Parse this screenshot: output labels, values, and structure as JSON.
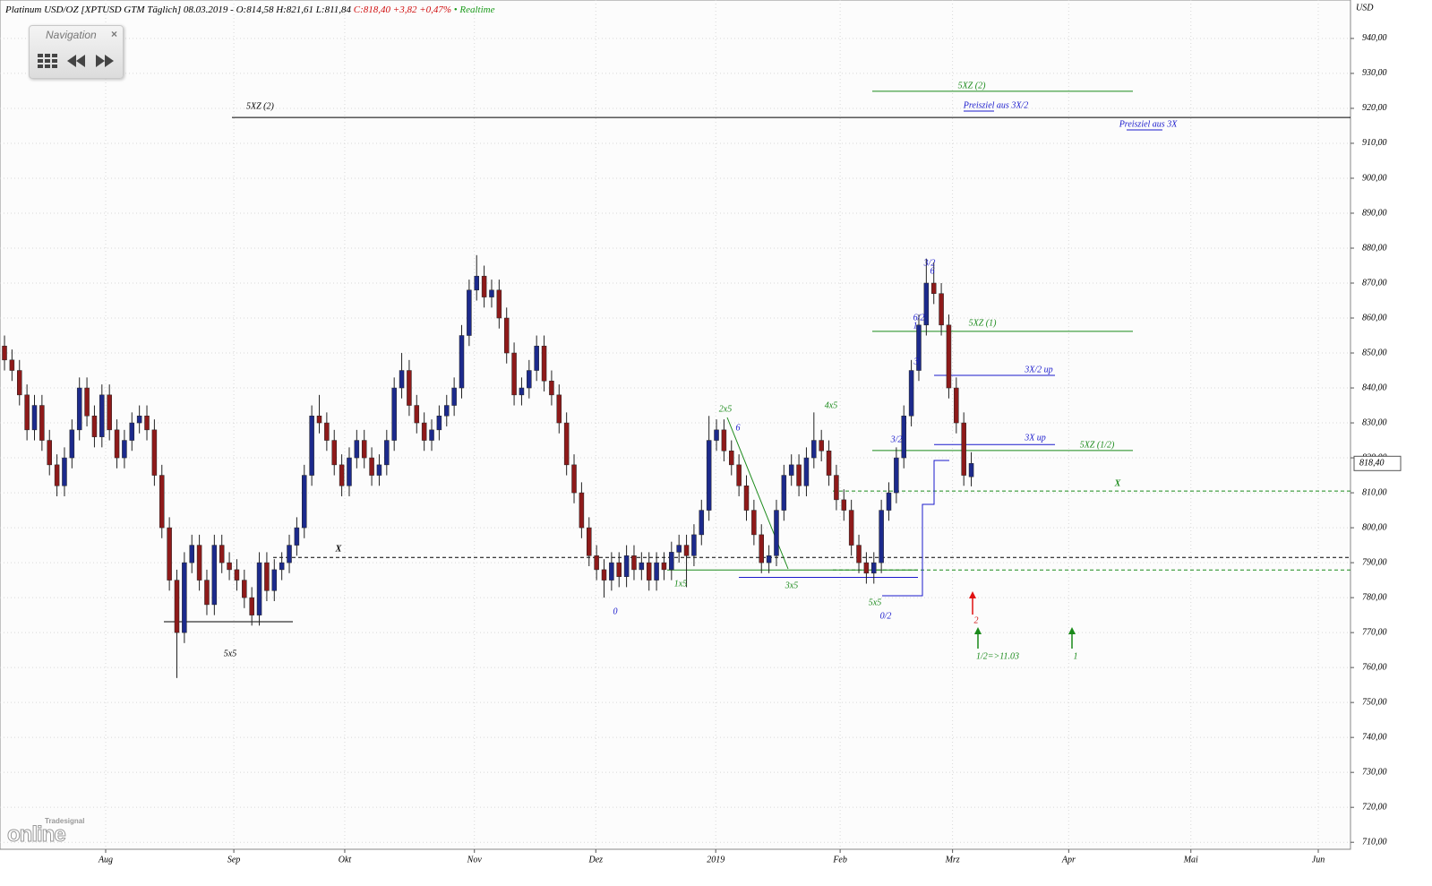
{
  "header": {
    "instrument": "Platinum USD/OZ [XPTUSD GTM Täglich] 08.03.2019 - O:814,58 H:821,61 L:811,84",
    "change": "C:818,40 +3,82 +0,47%",
    "status": "• Realtime"
  },
  "navigation": {
    "title": "Navigation",
    "close": "×"
  },
  "logo": {
    "brand": "Tradesignal",
    "name": "online"
  },
  "chart_data": {
    "type": "candlestick",
    "y_axis_label": "USD",
    "x": [
      0,
      1,
      2,
      3,
      4,
      5,
      6,
      7,
      8,
      9,
      10,
      11,
      12,
      13,
      14,
      15,
      16,
      17,
      18,
      19,
      20,
      21,
      22,
      23,
      24,
      25,
      26,
      27,
      28,
      29,
      30,
      31,
      32,
      33,
      34,
      35,
      36,
      37,
      38,
      39,
      40,
      41,
      42,
      43,
      44,
      45,
      46,
      47,
      48,
      49,
      50,
      51,
      52,
      53,
      54,
      55,
      56,
      57,
      58,
      59,
      60,
      61,
      62,
      63,
      64,
      65,
      66,
      67,
      68,
      69,
      70,
      71,
      72,
      73,
      74,
      75,
      76,
      77,
      78,
      79,
      80,
      81,
      82,
      83,
      84,
      85,
      86,
      87,
      88,
      89,
      90,
      91,
      92,
      93,
      94,
      95,
      96,
      97,
      98,
      99,
      100,
      101,
      102,
      103,
      104,
      105,
      106,
      107,
      108,
      109,
      110,
      111,
      112,
      113,
      114,
      115,
      116,
      117,
      118,
      119,
      120,
      121,
      122,
      123,
      124,
      125,
      126,
      127,
      128,
      129
    ],
    "open": [
      852,
      848,
      845,
      838,
      828,
      835,
      825,
      818,
      812,
      820,
      828,
      840,
      832,
      826,
      838,
      828,
      820,
      825,
      830,
      832,
      828,
      815,
      800,
      785,
      770,
      790,
      795,
      785,
      778,
      795,
      790,
      788,
      785,
      780,
      775,
      790,
      782,
      788,
      790,
      795,
      800,
      815,
      832,
      830,
      825,
      818,
      812,
      820,
      825,
      820,
      815,
      818,
      825,
      840,
      845,
      835,
      830,
      825,
      828,
      832,
      835,
      840,
      855,
      868,
      872,
      866,
      868,
      860,
      850,
      838,
      840,
      845,
      852,
      842,
      838,
      830,
      818,
      810,
      800,
      792,
      788,
      785,
      790,
      786,
      792,
      788,
      790,
      785,
      790,
      788,
      793,
      795,
      792,
      798,
      805,
      825,
      828,
      822,
      818,
      812,
      805,
      798,
      790,
      792,
      805,
      815,
      818,
      812,
      820,
      825,
      822,
      815,
      808,
      805,
      795,
      790,
      787,
      790,
      805,
      810,
      820,
      832,
      845,
      858,
      870,
      867,
      858,
      840,
      830,
      814.58
    ],
    "high": [
      855,
      851,
      848,
      841,
      838,
      838,
      828,
      821,
      823,
      831,
      843,
      843,
      835,
      841,
      841,
      831,
      828,
      833,
      835,
      835,
      831,
      818,
      803,
      788,
      793,
      798,
      798,
      788,
      798,
      798,
      793,
      791,
      788,
      783,
      793,
      793,
      791,
      793,
      798,
      803,
      818,
      835,
      838,
      833,
      828,
      821,
      823,
      828,
      828,
      823,
      821,
      828,
      843,
      850,
      848,
      838,
      833,
      831,
      835,
      838,
      843,
      858,
      871,
      878,
      875,
      871,
      871,
      863,
      853,
      843,
      848,
      855,
      855,
      845,
      841,
      833,
      821,
      813,
      803,
      795,
      791,
      793,
      793,
      795,
      795,
      793,
      793,
      793,
      793,
      796,
      798,
      798,
      801,
      808,
      832,
      831,
      831,
      825,
      821,
      815,
      808,
      801,
      795,
      808,
      818,
      821,
      821,
      823,
      833,
      828,
      825,
      818,
      811,
      808,
      798,
      793,
      793,
      808,
      813,
      823,
      835,
      848,
      861,
      877,
      876,
      870,
      861,
      843,
      833,
      821.61
    ],
    "low": [
      845,
      842,
      835,
      825,
      825,
      822,
      815,
      809,
      809,
      817,
      825,
      829,
      823,
      823,
      825,
      817,
      817,
      822,
      827,
      825,
      812,
      797,
      782,
      757,
      767,
      787,
      782,
      775,
      775,
      787,
      785,
      782,
      777,
      772,
      772,
      779,
      779,
      785,
      787,
      792,
      797,
      812,
      827,
      822,
      815,
      809,
      809,
      817,
      817,
      812,
      812,
      815,
      822,
      837,
      832,
      827,
      822,
      822,
      825,
      829,
      832,
      837,
      852,
      865,
      863,
      863,
      857,
      847,
      835,
      835,
      837,
      842,
      839,
      835,
      827,
      815,
      807,
      797,
      789,
      785,
      780,
      782,
      783,
      783,
      785,
      785,
      782,
      782,
      785,
      785,
      790,
      783,
      789,
      795,
      802,
      822,
      819,
      815,
      809,
      802,
      795,
      787,
      787,
      789,
      802,
      812,
      809,
      809,
      817,
      819,
      812,
      805,
      802,
      792,
      787,
      784,
      784,
      787,
      802,
      807,
      817,
      829,
      842,
      855,
      864,
      855,
      837,
      827,
      812,
      811.84
    ],
    "close": [
      848,
      845,
      838,
      828,
      835,
      825,
      818,
      812,
      820,
      828,
      840,
      832,
      826,
      838,
      828,
      820,
      825,
      830,
      832,
      828,
      815,
      800,
      785,
      770,
      790,
      795,
      785,
      778,
      795,
      790,
      788,
      785,
      780,
      775,
      790,
      782,
      788,
      790,
      795,
      800,
      815,
      832,
      830,
      825,
      818,
      812,
      820,
      825,
      820,
      815,
      818,
      825,
      840,
      845,
      835,
      830,
      825,
      828,
      832,
      835,
      840,
      855,
      868,
      872,
      866,
      868,
      860,
      850,
      838,
      840,
      845,
      852,
      842,
      838,
      830,
      818,
      810,
      800,
      792,
      788,
      785,
      790,
      786,
      792,
      788,
      790,
      785,
      790,
      788,
      793,
      795,
      792,
      798,
      805,
      825,
      828,
      822,
      818,
      812,
      805,
      798,
      790,
      792,
      805,
      815,
      818,
      812,
      820,
      825,
      822,
      815,
      808,
      805,
      795,
      790,
      787,
      790,
      805,
      810,
      820,
      832,
      845,
      858,
      870,
      867,
      858,
      840,
      830,
      815,
      818.4
    ],
    "up_color": "#1c2a8c",
    "down_color": "#8e1a1a",
    "xlim": [
      -0.6,
      179.6
    ],
    "ylim": [
      708,
      951
    ],
    "xticks": [
      {
        "value": 13.5,
        "label": "Aug"
      },
      {
        "value": 30.6,
        "label": "Sep"
      },
      {
        "value": 45.4,
        "label": "Okt"
      },
      {
        "value": 62.7,
        "label": "Nov"
      },
      {
        "value": 78.9,
        "label": "Dez"
      },
      {
        "value": 94.9,
        "label": "2019"
      },
      {
        "value": 111.5,
        "label": "Feb"
      },
      {
        "value": 126.5,
        "label": "Mrz"
      },
      {
        "value": 142,
        "label": "Apr"
      },
      {
        "value": 158.3,
        "label": "Mai"
      },
      {
        "value": 175.3,
        "label": "Jun"
      }
    ],
    "yticks": [
      {
        "value": 710,
        "label": "710,00"
      },
      {
        "value": 720,
        "label": "720,00"
      },
      {
        "value": 730,
        "label": "730,00"
      },
      {
        "value": 740,
        "label": "740,00"
      },
      {
        "value": 750,
        "label": "750,00"
      },
      {
        "value": 760,
        "label": "760,00"
      },
      {
        "value": 770,
        "label": "770,00"
      },
      {
        "value": 780,
        "label": "780,00"
      },
      {
        "value": 790,
        "label": "790,00"
      },
      {
        "value": 800,
        "label": "800,00"
      },
      {
        "value": 810,
        "label": "810,00"
      },
      {
        "value": 820,
        "label": "820,00"
      },
      {
        "value": 830,
        "label": "830,00"
      },
      {
        "value": 840,
        "label": "840,00"
      },
      {
        "value": 850,
        "label": "850,00"
      },
      {
        "value": 860,
        "label": "860,00"
      },
      {
        "value": 870,
        "label": "870,00"
      },
      {
        "value": 880,
        "label": "880,00"
      },
      {
        "value": 890,
        "label": "890,00"
      },
      {
        "value": 900,
        "label": "900,00"
      },
      {
        "value": 910,
        "label": "910,00"
      },
      {
        "value": 920,
        "label": "920,00"
      },
      {
        "value": 930,
        "label": "930,00"
      },
      {
        "value": 940,
        "label": "940,00"
      }
    ],
    "grid": true,
    "price_tag": {
      "value": 818.4,
      "label": "818,40"
    },
    "levels": [
      {
        "value": 917.4,
        "label": "5XZ (2)",
        "color": "#000000",
        "style": "solid"
      },
      {
        "value": 924.9,
        "label": "5XZ (2)",
        "color": "#1a8a1a",
        "style": "solid"
      },
      {
        "value": 856.2,
        "label": "5XZ (1)",
        "color": "#1a8a1a",
        "style": "solid"
      },
      {
        "value": 843.6,
        "label": "3X/2 up",
        "color": "#1a1acc",
        "style": "solid"
      },
      {
        "value": 823.8,
        "label": "3X up",
        "color": "#1a1acc",
        "style": "solid"
      },
      {
        "value": 822.1,
        "label": "5XZ (1/2)",
        "color": "#1a8a1a",
        "style": "solid"
      },
      {
        "value": 810.5,
        "label": "X",
        "color": "#1a8a1a",
        "style": "dashed"
      },
      {
        "value": 791.5,
        "label": "X",
        "color": "#000000",
        "style": "dashed"
      },
      {
        "value": 787.9,
        "color": "#1a8a1a",
        "style": "dashed"
      },
      {
        "value": 787.9,
        "color": "#1a8a1a",
        "style": "solid"
      },
      {
        "value": 785.8,
        "color": "#1a1acc",
        "style": "solid"
      },
      {
        "value": 773.1,
        "color": "#000000",
        "style": "solid"
      }
    ],
    "annotations": [
      {
        "text": "2x5",
        "color": "#1a8a1a"
      },
      {
        "text": "6",
        "color": "#1a1acc"
      },
      {
        "text": "4x5",
        "color": "#1a8a1a"
      },
      {
        "text": "1x5",
        "color": "#1a8a1a"
      },
      {
        "text": "3x5",
        "color": "#1a8a1a"
      },
      {
        "text": "5x5",
        "color": "#1a8a1a"
      },
      {
        "text": "0/2",
        "color": "#1a1acc"
      },
      {
        "text": "0",
        "color": "#1a1acc"
      },
      {
        "text": "5x5",
        "color": "#000000"
      },
      {
        "text": "3/2",
        "color": "#1a1acc"
      },
      {
        "text": "6",
        "color": "#1a1acc"
      },
      {
        "text": "6/2",
        "color": "#1a1acc"
      },
      {
        "text": "1",
        "color": "#1a1acc"
      },
      {
        "text": "3",
        "color": "#1a1acc"
      },
      {
        "text": "3/2",
        "color": "#1a1acc"
      },
      {
        "text": "2",
        "color": "#d01010"
      },
      {
        "text": "1/2=>11.03",
        "color": "#1a8a1a"
      },
      {
        "text": "1",
        "color": "#1a8a1a"
      },
      {
        "text": "Preisziel aus 3X/2",
        "color": "#1a1acc"
      },
      {
        "text": "Preisziel aus 3X",
        "color": "#1a1acc"
      }
    ]
  }
}
